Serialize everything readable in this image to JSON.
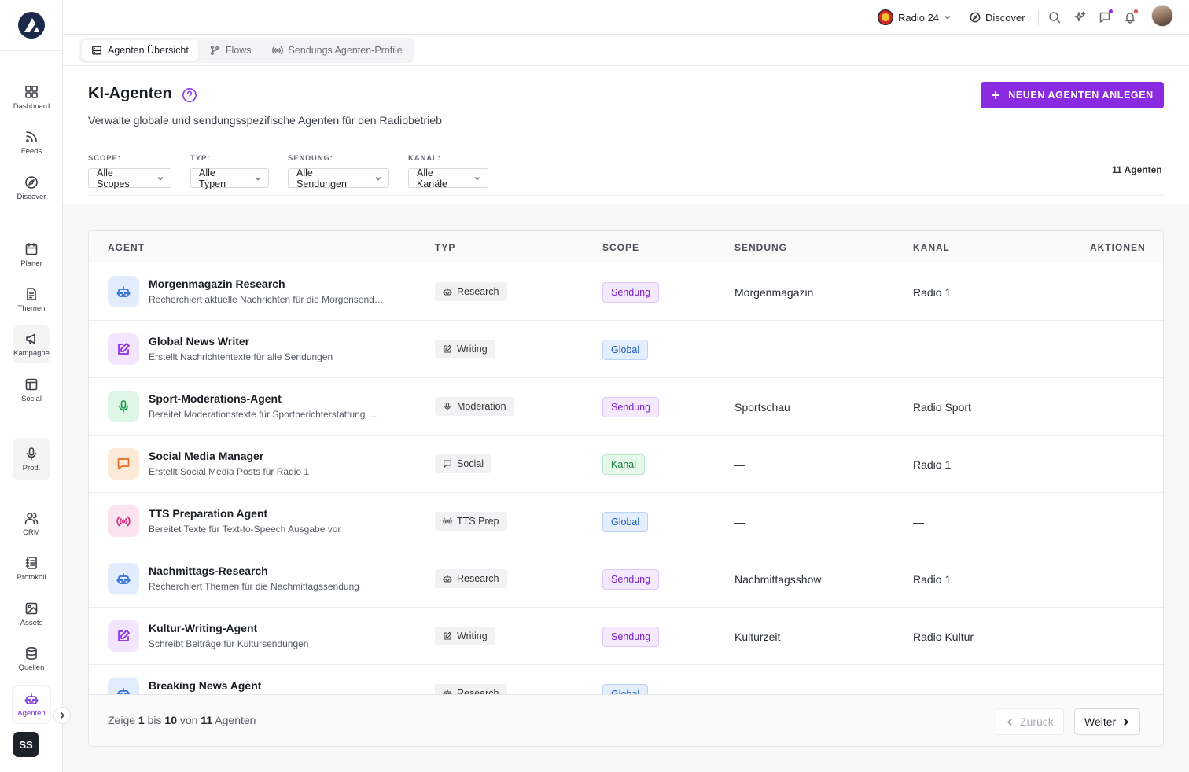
{
  "brand": {
    "accent": "#8a2be2"
  },
  "sidebar": {
    "items": [
      {
        "label": "Dashboard",
        "icon": "grid-icon"
      },
      {
        "label": "Feeds",
        "icon": "rss-icon"
      },
      {
        "label": "Discover",
        "icon": "compass-icon"
      },
      {
        "label": "Planer",
        "icon": "calendar-icon"
      },
      {
        "label": "Themen",
        "icon": "document-icon"
      },
      {
        "label": "Kampagne",
        "icon": "megaphone-icon"
      },
      {
        "label": "Social",
        "icon": "layout-icon"
      },
      {
        "label": "Prod.",
        "icon": "microphone-icon"
      },
      {
        "label": "CRM",
        "icon": "users-icon"
      },
      {
        "label": "Protokoll",
        "icon": "notebook-icon"
      },
      {
        "label": "Assets",
        "icon": "image-icon"
      },
      {
        "label": "Quellen",
        "icon": "database-icon"
      },
      {
        "label": "Agenten",
        "icon": "robot-icon"
      }
    ],
    "user_initials": "SS"
  },
  "topbar": {
    "station": "Radio 24",
    "discover": "Discover"
  },
  "subnav": {
    "tabs": [
      {
        "label": "Agenten Übersicht",
        "icon": "server-icon"
      },
      {
        "label": "Flows",
        "icon": "git-branch-icon"
      },
      {
        "label": "Sendungs Agenten-Profile",
        "icon": "broadcast-icon"
      }
    ]
  },
  "page": {
    "title": "KI-Agenten",
    "subtitle": "Verwalte globale und sendungsspezifische Agenten für den Radiobetrieb",
    "new_button": "NEUEN AGENTEN ANLEGEN",
    "count": "11 Agenten"
  },
  "filters": {
    "scope": {
      "label": "SCOPE:",
      "value": "Alle Scopes"
    },
    "typ": {
      "label": "TYP:",
      "value": "Alle Typen"
    },
    "sendung": {
      "label": "SENDUNG:",
      "value": "Alle Sendungen"
    },
    "kanal": {
      "label": "KANAL:",
      "value": "Alle Kanäle"
    }
  },
  "table": {
    "headers": {
      "agent": "AGENT",
      "typ": "TYP",
      "scope": "SCOPE",
      "sendung": "SENDUNG",
      "kanal": "KANAL",
      "aktionen": "AKTIONEN"
    },
    "rows": [
      {
        "name": "Morgenmagazin Research",
        "desc": "Recherchiert aktuelle Nachrichten für die Morgensend…",
        "icon": "robot-icon",
        "type": "Research",
        "type_icon": "robot-icon",
        "scope": "Sendung",
        "sendung": "Morgenmagazin",
        "kanal": "Radio 1",
        "tone": "blue"
      },
      {
        "name": "Global News Writer",
        "desc": "Erstellt Nachrichtentexte für alle Sendungen",
        "icon": "edit-icon",
        "type": "Writing",
        "type_icon": "edit-icon",
        "scope": "Global",
        "sendung": "—",
        "kanal": "—",
        "tone": "purple"
      },
      {
        "name": "Sport-Moderations-Agent",
        "desc": "Bereitet Moderationstexte für Sportberichterstattung …",
        "icon": "microphone-icon",
        "type": "Moderation",
        "type_icon": "microphone-icon",
        "scope": "Sendung",
        "sendung": "Sportschau",
        "kanal": "Radio Sport",
        "tone": "green"
      },
      {
        "name": "Social Media Manager",
        "desc": "Erstellt Social Media Posts für Radio 1",
        "icon": "chat-icon",
        "type": "Social",
        "type_icon": "chat-icon",
        "scope": "Kanal",
        "sendung": "—",
        "kanal": "Radio 1",
        "tone": "orange"
      },
      {
        "name": "TTS Preparation Agent",
        "desc": "Bereitet Texte für Text-to-Speech Ausgabe vor",
        "icon": "broadcast-icon",
        "type": "TTS Prep",
        "type_icon": "broadcast-icon",
        "scope": "Global",
        "sendung": "—",
        "kanal": "—",
        "tone": "pink"
      },
      {
        "name": "Nachmittags-Research",
        "desc": "Recherchiert Themen für die Nachmittagssendung",
        "icon": "robot-icon",
        "type": "Research",
        "type_icon": "robot-icon",
        "scope": "Sendung",
        "sendung": "Nachmittagsshow",
        "kanal": "Radio 1",
        "tone": "blue"
      },
      {
        "name": "Kultur-Writing-Agent",
        "desc": "Schreibt Beiträge für Kultursendungen",
        "icon": "edit-icon",
        "type": "Writing",
        "type_icon": "edit-icon",
        "scope": "Sendung",
        "sendung": "Kulturzeit",
        "kanal": "Radio Kultur",
        "tone": "purple"
      },
      {
        "name": "Breaking News Agent",
        "desc": "",
        "icon": "robot-icon",
        "type": "Research",
        "type_icon": "robot-icon",
        "scope": "Global",
        "sendung": "",
        "kanal": "",
        "tone": "blue"
      }
    ]
  },
  "pagination": {
    "prefix": "Zeige",
    "from": "1",
    "mid1": "bis",
    "to": "10",
    "mid2": "von",
    "total": "11",
    "suffix": "Agenten",
    "prev": "Zurück",
    "next": "Weiter"
  }
}
